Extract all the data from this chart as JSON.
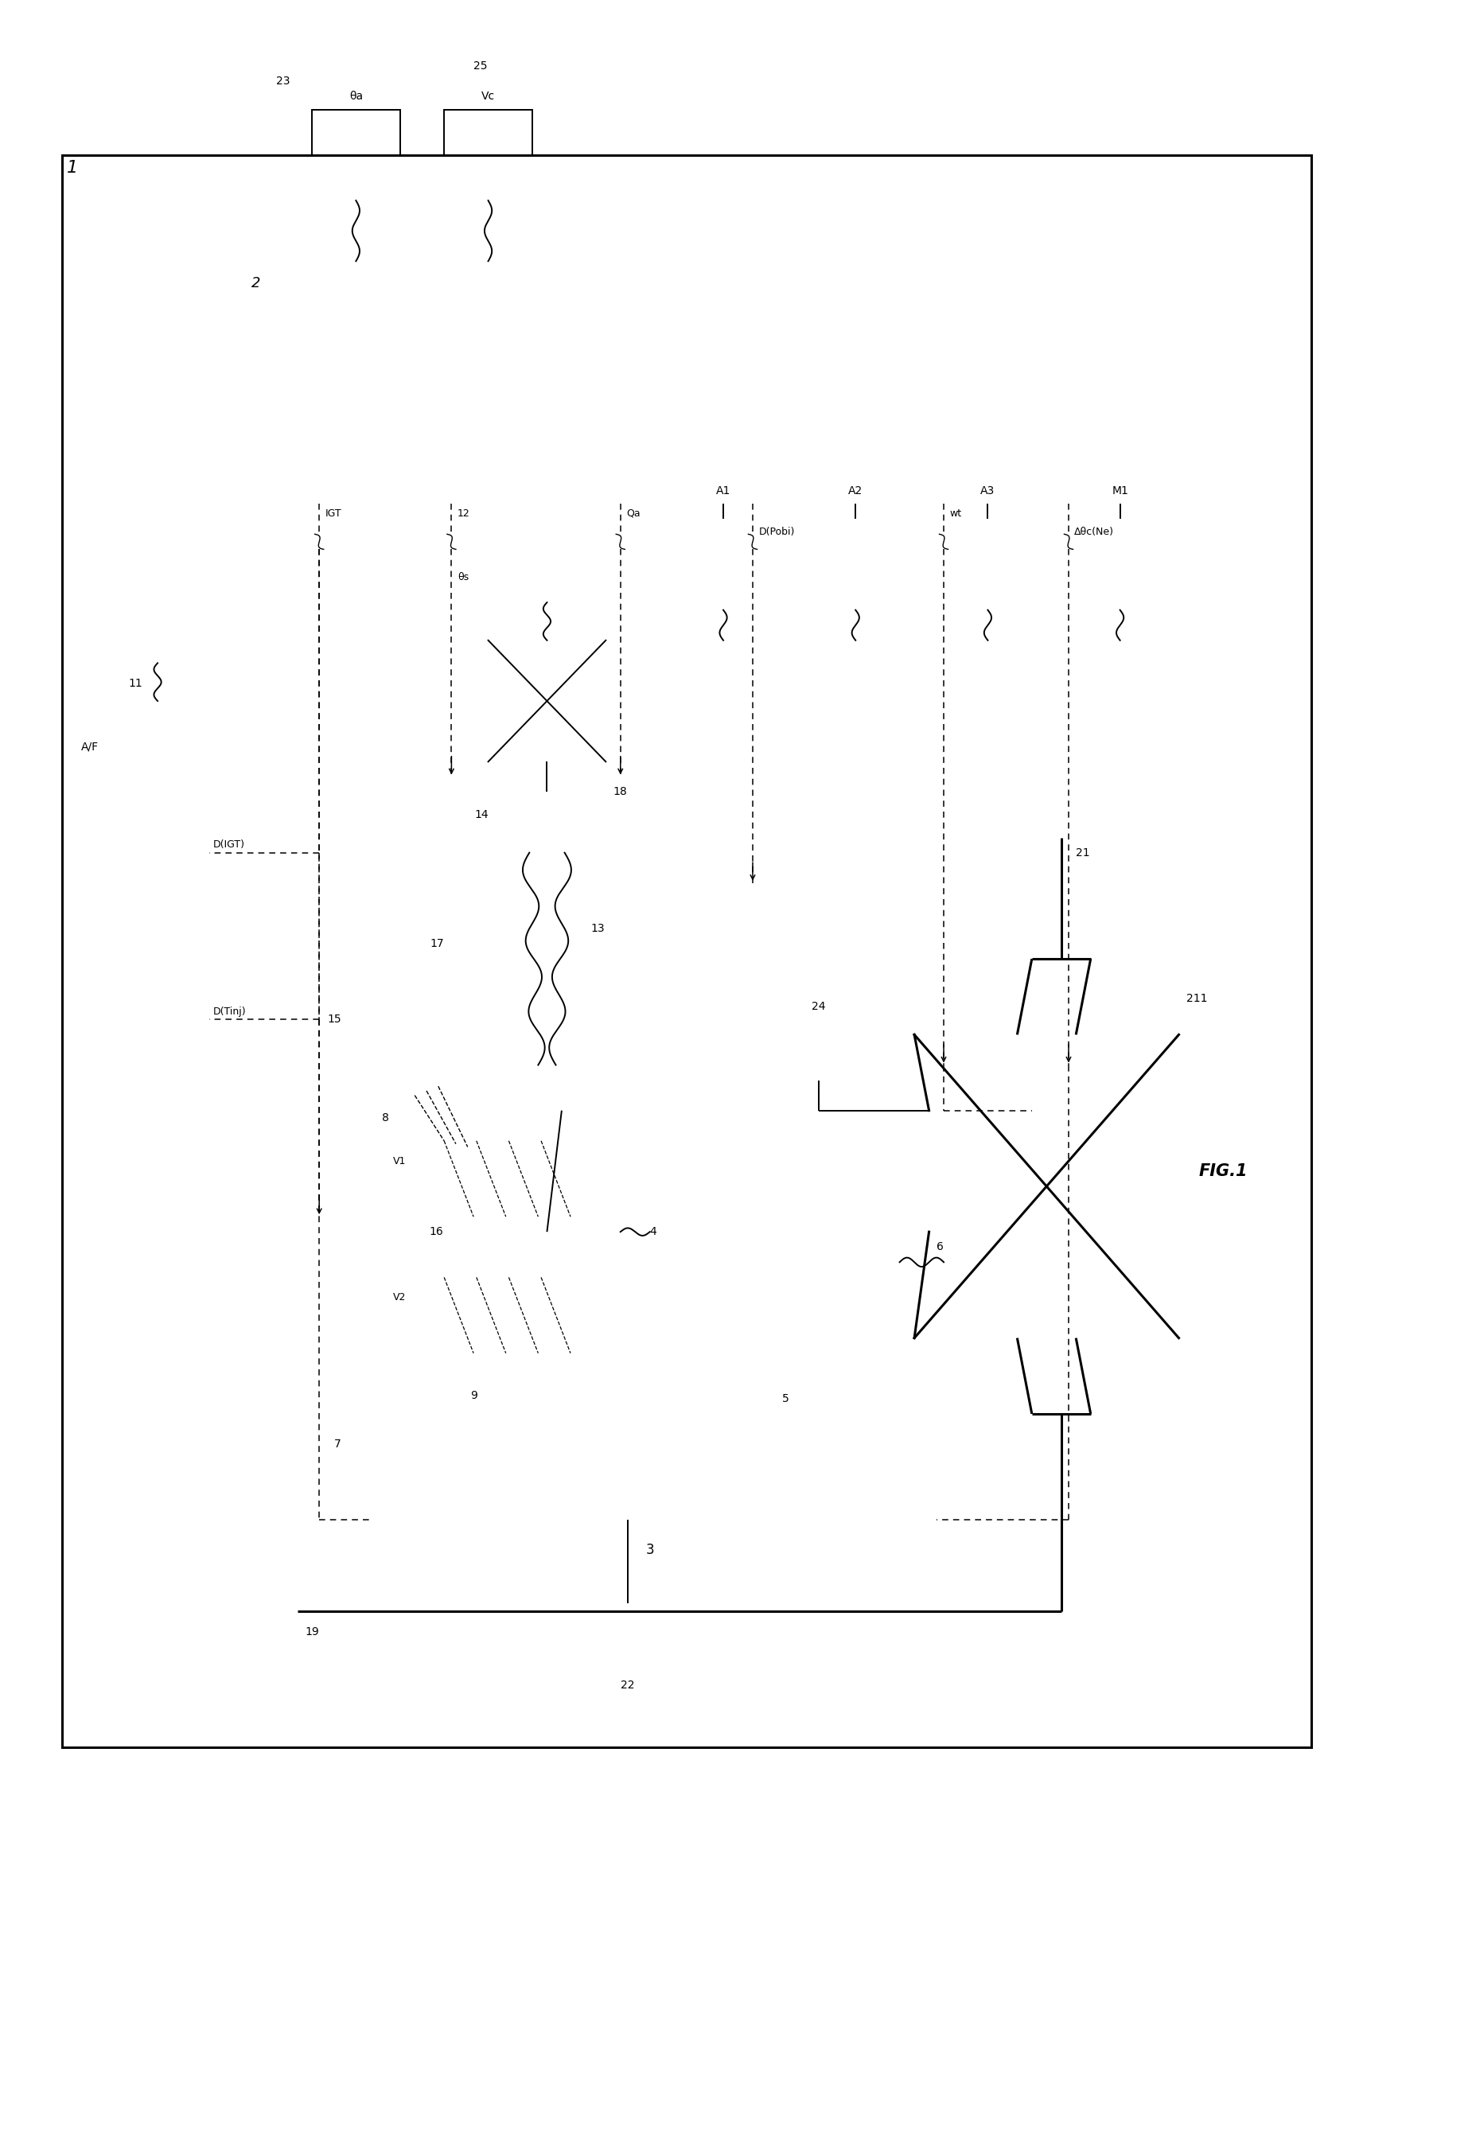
{
  "title": "FIG.1",
  "bg_color": "#ffffff",
  "line_color": "#000000",
  "fig_width": 18.55,
  "fig_height": 26.77,
  "labels": {
    "fig_label": "FIG.1",
    "num_1": "1",
    "num_2": "2",
    "num_3": "3",
    "num_4": "4",
    "num_5": "5",
    "num_6": "6",
    "num_7": "7",
    "num_8": "8",
    "num_9": "9",
    "num_11": "11",
    "num_12": "12",
    "num_13": "13",
    "num_14": "14",
    "num_15": "15",
    "num_16": "16",
    "num_17": "17",
    "num_18": "18",
    "num_19": "19",
    "num_21": "21",
    "num_211": "211",
    "num_22": "22",
    "num_23": "23",
    "num_24": "24",
    "num_25": "25",
    "IGT": "IGT",
    "AF": "A/F",
    "DIGT": "D(IGT)",
    "DTinj": "D(Tinj)",
    "theta_s": "θs",
    "theta_a": "θa",
    "Vc": "Vc",
    "A1": "A1",
    "A2": "A2",
    "A3": "A3",
    "M1": "M1",
    "Qa": "Qa",
    "DPobi": "D(Pobi)",
    "wt": "wt",
    "DeltaThetac": "Δθc(Ne)",
    "V1": "V1",
    "V2": "V2"
  }
}
